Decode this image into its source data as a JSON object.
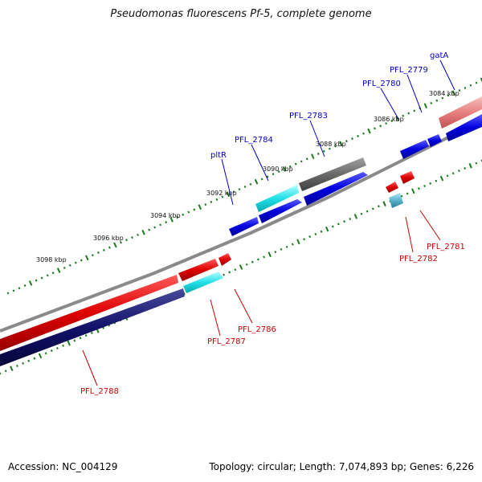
{
  "title": "Pseudomonas fluorescens Pf-5, complete genome",
  "footer": {
    "accession": "Accession: NC_004129",
    "summary": "Topology: circular; Length: 7,074,893 bp; Genes: 6,226"
  },
  "colors": {
    "forward_label": "#0000c8",
    "reverse_label": "#cc0000",
    "tick": "#1a7a1a",
    "backbone": "#888888"
  },
  "axis_ticks": [
    {
      "label": "3084 kbp"
    },
    {
      "label": "3086 kbp"
    },
    {
      "label": "3088 kbp"
    },
    {
      "label": "3090 kbp"
    },
    {
      "label": "3092 kbp"
    },
    {
      "label": "3094 kbp"
    },
    {
      "label": "3096 kbp"
    },
    {
      "label": "3098 kbp"
    }
  ],
  "gene_labels": {
    "forward": [
      "gatA",
      "PFL_2779",
      "PFL_2780",
      "PFL_2783",
      "PFL_2784",
      "pltR"
    ],
    "reverse": [
      "PFL_2781",
      "PFL_2782",
      "PFL_2786",
      "PFL_2787",
      "PFL_2788"
    ]
  }
}
